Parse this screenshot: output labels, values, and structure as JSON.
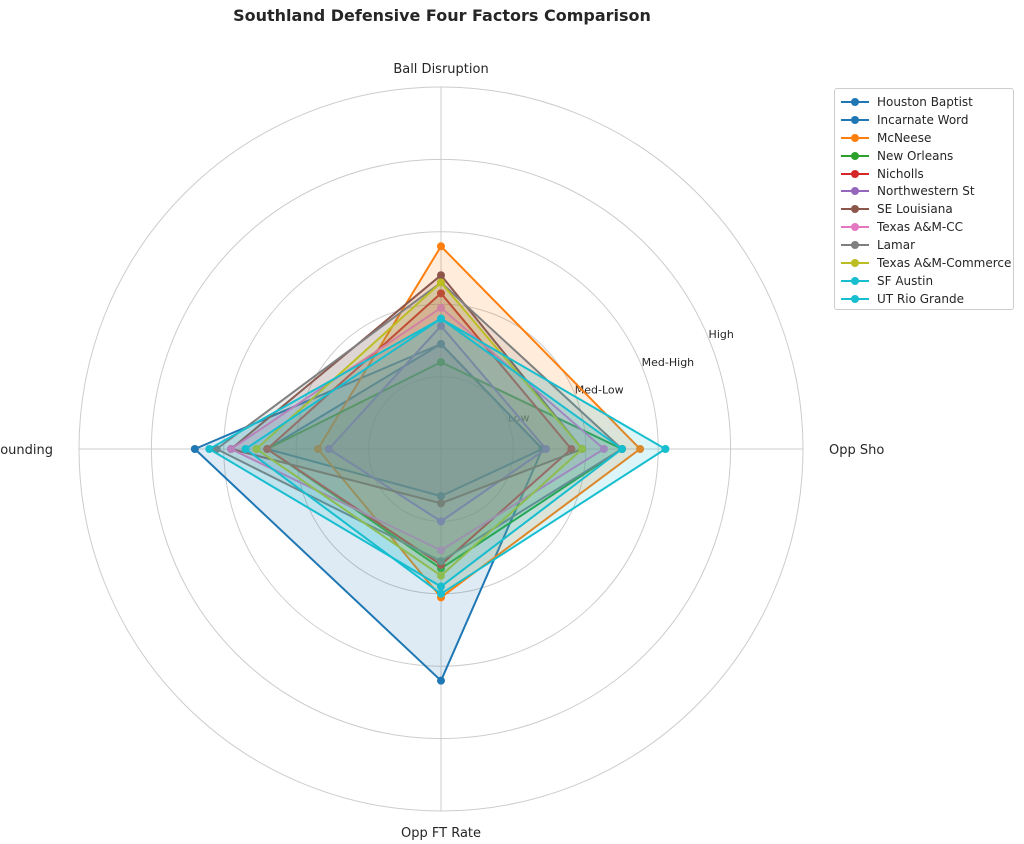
{
  "chart_data": {
    "type": "radar",
    "title": "Southland Defensive Four Factors Comparison",
    "axes": [
      "Ball Disruption",
      "Opp Shooting",
      "Opp FT Rate",
      "Def Rebounding"
    ],
    "rlim": [
      0,
      5
    ],
    "ring_labels": [
      "Low",
      "Med-Low",
      "Med-High",
      "High"
    ],
    "grid": true,
    "legend_position": "right",
    "series": [
      {
        "name": "Houston Baptist",
        "color": "#1f77b4",
        "values": [
          1.45,
          1.4,
          3.2,
          3.4
        ]
      },
      {
        "name": "Incarnate Word",
        "color": "#1f77b4",
        "values": [
          1.45,
          1.4,
          0.65,
          2.4
        ]
      },
      {
        "name": "McNeese",
        "color": "#ff7f0e",
        "values": [
          2.8,
          2.75,
          2.05,
          1.7
        ]
      },
      {
        "name": "New Orleans",
        "color": "#2ca02c",
        "values": [
          1.2,
          2.5,
          1.65,
          2.4
        ]
      },
      {
        "name": "Nicholls",
        "color": "#d62728",
        "values": [
          2.15,
          1.8,
          1.6,
          2.4
        ]
      },
      {
        "name": "Northwestern St",
        "color": "#9467bd",
        "values": [
          1.7,
          1.45,
          1.0,
          1.55
        ]
      },
      {
        "name": "SE Louisiana",
        "color": "#8c564b",
        "values": [
          2.4,
          1.95,
          0.75,
          2.9
        ]
      },
      {
        "name": "Texas A&M-CC",
        "color": "#e377c2",
        "values": [
          1.95,
          2.25,
          1.4,
          2.9
        ]
      },
      {
        "name": "Lamar",
        "color": "#7f7f7f",
        "values": [
          2.3,
          2.5,
          1.55,
          3.1
        ]
      },
      {
        "name": "Texas A&M-Commerce",
        "color": "#bcbd22",
        "values": [
          2.3,
          1.95,
          1.75,
          2.55
        ]
      },
      {
        "name": "SF Austin",
        "color": "#17becf",
        "values": [
          1.8,
          2.5,
          1.9,
          3.2
        ]
      },
      {
        "name": "UT Rio Grande",
        "color": "#17becf",
        "values": [
          1.8,
          3.1,
          2.0,
          2.7
        ]
      }
    ]
  }
}
